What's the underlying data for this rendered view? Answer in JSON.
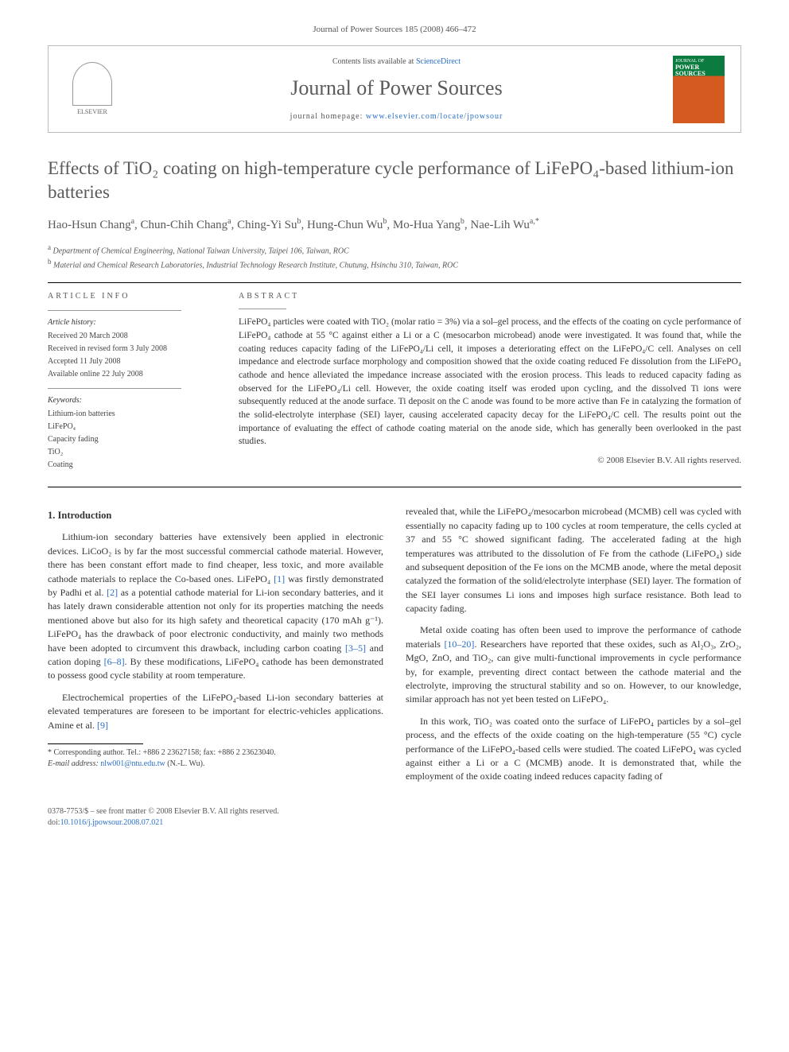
{
  "header": {
    "citation": "Journal of Power Sources 185 (2008) 466–472",
    "contents_prefix": "Contents lists available at ",
    "contents_link": "ScienceDirect",
    "journal_name": "Journal of Power Sources",
    "homepage_prefix": "journal homepage: ",
    "homepage_url": "www.elsevier.com/locate/jpowsour",
    "elsevier_label": "ELSEVIER",
    "cover_label_top": "JOURNAL OF",
    "cover_label_main": "POWER SOURCES"
  },
  "title": "Effects of TiO₂ coating on high-temperature cycle performance of LiFePO₄-based lithium-ion batteries",
  "authors_html": "Hao-Hsun Chang<sup>a</sup>, Chun-Chih Chang<sup>a</sup>, Ching-Yi Su<sup>b</sup>, Hung-Chun Wu<sup>b</sup>, Mo-Hua Yang<sup>b</sup>, Nae-Lih Wu<sup>a,*</sup>",
  "affiliations": {
    "a": "Department of Chemical Engineering, National Taiwan University, Taipei 106, Taiwan, ROC",
    "b": "Material and Chemical Research Laboratories, Industrial Technology Research Institute, Chutung, Hsinchu 310, Taiwan, ROC"
  },
  "article_info": {
    "heading": "ARTICLE INFO",
    "history_label": "Article history:",
    "received": "Received 20 March 2008",
    "revised": "Received in revised form 3 July 2008",
    "accepted": "Accepted 11 July 2008",
    "online": "Available online 22 July 2008",
    "keywords_label": "Keywords:",
    "keywords": [
      "Lithium-ion batteries",
      "LiFePO₄",
      "Capacity fading",
      "TiO₂",
      "Coating"
    ]
  },
  "abstract": {
    "heading": "ABSTRACT",
    "text": "LiFePO₄ particles were coated with TiO₂ (molar ratio = 3%) via a sol–gel process, and the effects of the coating on cycle performance of LiFePO₄ cathode at 55 °C against either a Li or a C (mesocarbon microbead) anode were investigated. It was found that, while the coating reduces capacity fading of the LiFePO₄/Li cell, it imposes a deteriorating effect on the LiFePO₄/C cell. Analyses on cell impedance and electrode surface morphology and composition showed that the oxide coating reduced Fe dissolution from the LiFePO₄ cathode and hence alleviated the impedance increase associated with the erosion process. This leads to reduced capacity fading as observed for the LiFePO₄/Li cell. However, the oxide coating itself was eroded upon cycling, and the dissolved Ti ions were subsequently reduced at the anode surface. Ti deposit on the C anode was found to be more active than Fe in catalyzing the formation of the solid-electrolyte interphase (SEI) layer, causing accelerated capacity decay for the LiFePO₄/C cell. The results point out the importance of evaluating the effect of cathode coating material on the anode side, which has generally been overlooked in the past studies.",
    "copyright": "© 2008 Elsevier B.V. All rights reserved."
  },
  "intro": {
    "heading": "1. Introduction",
    "p1": "Lithium-ion secondary batteries have extensively been applied in electronic devices. LiCoO₂ is by far the most successful commercial cathode material. However, there has been constant effort made to find cheaper, less toxic, and more available cathode materials to replace the Co-based ones. LiFePO₄ [1] was firstly demonstrated by Padhi et al. [2] as a potential cathode material for Li-ion secondary batteries, and it has lately drawn considerable attention not only for its properties matching the needs mentioned above but also for its high safety and theoretical capacity (170 mAh g⁻¹). LiFePO₄ has the drawback of poor electronic conductivity, and mainly two methods have been adopted to circumvent this drawback, including carbon coating [3–5] and cation doping [6–8]. By these modifications, LiFePO₄ cathode has been demonstrated to possess good cycle stability at room temperature.",
    "p2": "Electrochemical properties of the LiFePO₄-based Li-ion secondary batteries at elevated temperatures are foreseen to be important for electric-vehicles applications. Amine et al. [9] revealed that, while the LiFePO₄/mesocarbon microbead (MCMB) cell was cycled with essentially no capacity fading up to 100 cycles at room temperature, the cells cycled at 37 and 55 °C showed significant fading. The accelerated fading at the high temperatures was attributed to the dissolution of Fe from the cathode (LiFePO₄) side and subsequent deposition of the Fe ions on the MCMB anode, where the metal deposit catalyzed the formation of the solid/electrolyte interphase (SEI) layer. The formation of the SEI layer consumes Li ions and imposes high surface resistance. Both lead to capacity fading.",
    "p3": "Metal oxide coating has often been used to improve the performance of cathode materials [10–20]. Researchers have reported that these oxides, such as Al₂O₃, ZrO₂, MgO, ZnO, and TiO₂, can give multi-functional improvements in cycle performance by, for example, preventing direct contact between the cathode material and the electrolyte, improving the structural stability and so on. However, to our knowledge, similar approach has not yet been tested on LiFePO₄.",
    "p4": "In this work, TiO₂ was coated onto the surface of LiFePO₄ particles by a sol–gel process, and the effects of the oxide coating on the high-temperature (55 °C) cycle performance of the LiFePO₄-based cells were studied. The coated LiFePO₄ was cycled against either a Li or a C (MCMB) anode. It is demonstrated that, while the employment of the oxide coating indeed reduces capacity fading of"
  },
  "footnote": {
    "corresponding": "* Corresponding author. Tel.: +886 2 23627158; fax: +886 2 23623040.",
    "email_label": "E-mail address: ",
    "email": "nlw001@ntu.edu.tw",
    "email_suffix": " (N.-L. Wu)."
  },
  "footer": {
    "line1": "0378-7753/$ – see front matter © 2008 Elsevier B.V. All rights reserved.",
    "doi_prefix": "doi:",
    "doi": "10.1016/j.jpowsour.2008.07.021"
  },
  "colors": {
    "link": "#2a6fc7",
    "heading_gray": "#5a5a5a",
    "text": "#333333",
    "rule": "#000000"
  }
}
